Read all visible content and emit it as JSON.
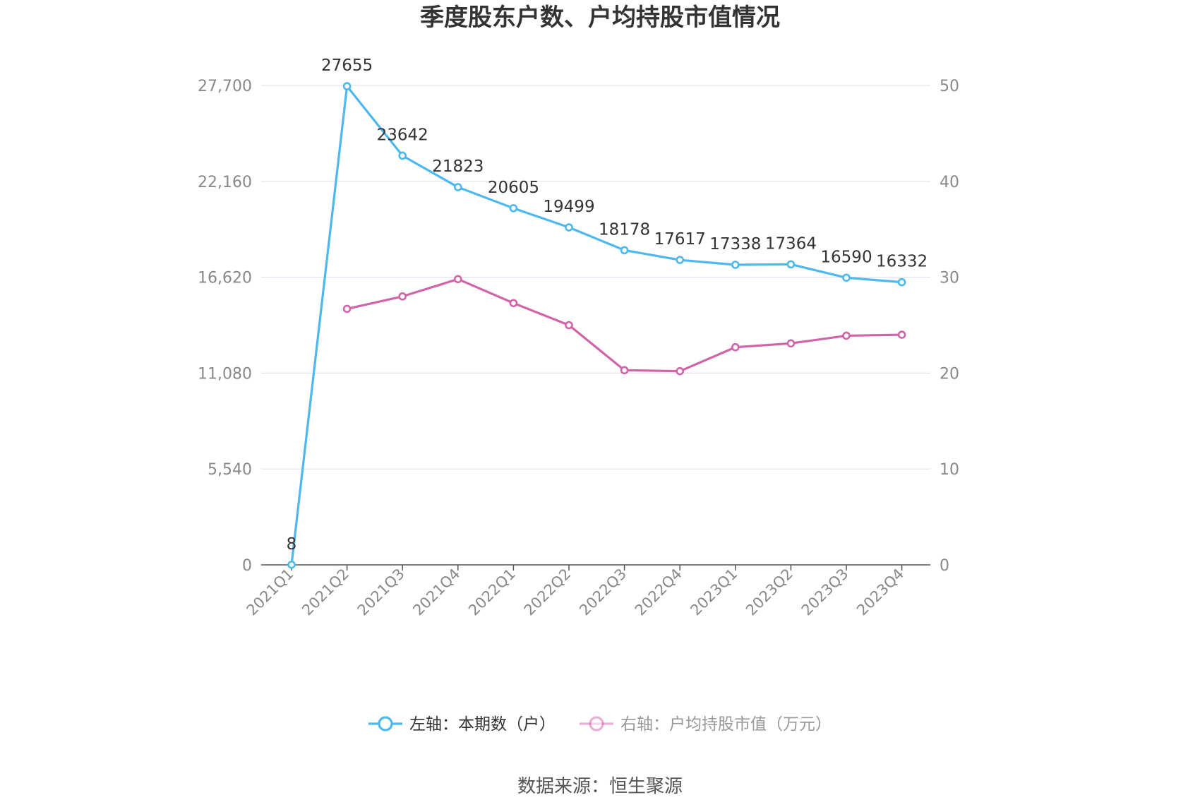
{
  "chart_data": {
    "type": "line",
    "title": "季度股东户数、户均持股市值情况",
    "categories": [
      "2021Q1",
      "2021Q2",
      "2021Q3",
      "2021Q4",
      "2022Q1",
      "2022Q2",
      "2022Q3",
      "2022Q4",
      "2023Q1",
      "2023Q2",
      "2023Q3",
      "2023Q4"
    ],
    "left_axis": {
      "ticks": [
        "0",
        "5,540",
        "11,080",
        "16,620",
        "22,160",
        "27,700"
      ],
      "ylim": [
        0,
        27700
      ]
    },
    "right_axis": {
      "ticks": [
        "0",
        "10",
        "20",
        "30",
        "40",
        "50"
      ],
      "ylim": [
        0,
        50
      ]
    },
    "grid": true,
    "legend_position": "bottom",
    "series": [
      {
        "name": "左轴：本期数（户）",
        "axis": "left",
        "color": "#4db8ee",
        "values": [
          8,
          27655,
          23642,
          21823,
          20605,
          19499,
          18178,
          17617,
          17338,
          17364,
          16590,
          16332
        ],
        "labels": [
          "8",
          "27655",
          "23642",
          "21823",
          "20605",
          "19499",
          "18178",
          "17617",
          "17338",
          "17364",
          "16590",
          "16332"
        ]
      },
      {
        "name": "右轴：户均持股市值（万元）",
        "axis": "right",
        "color": "#d163a8",
        "values": [
          null,
          26.7,
          28.0,
          29.8,
          27.3,
          25.0,
          20.3,
          20.2,
          22.7,
          23.1,
          23.9,
          24.0
        ]
      }
    ],
    "source": "数据来源：恒生聚源"
  }
}
